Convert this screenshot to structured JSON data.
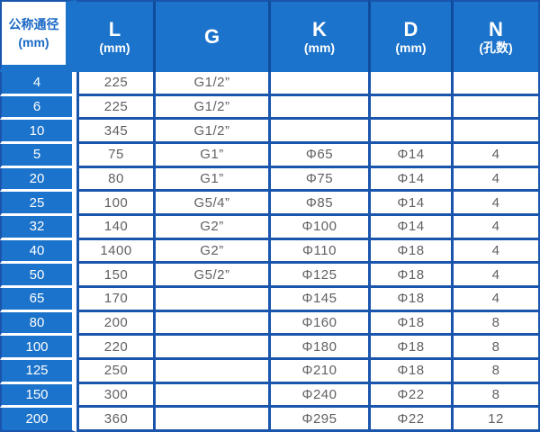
{
  "table": {
    "columns": [
      {
        "label": "公称通径",
        "sub": "(mm)"
      },
      {
        "label": "L",
        "sub": "(mm)"
      },
      {
        "label": "G",
        "sub": ""
      },
      {
        "label": "K",
        "sub": "(mm)"
      },
      {
        "label": "D",
        "sub": "(mm)"
      },
      {
        "label": "N",
        "sub": "(孔数)"
      }
    ],
    "rows": [
      [
        "4",
        "225",
        "G1/2”",
        "",
        "",
        ""
      ],
      [
        "6",
        "225",
        "G1/2”",
        "",
        "",
        ""
      ],
      [
        "10",
        "345",
        "G1/2”",
        "",
        "",
        ""
      ],
      [
        "5",
        "75",
        "G1”",
        "Φ65",
        "Φ14",
        "4"
      ],
      [
        "20",
        "80",
        "G1”",
        "Φ75",
        "Φ14",
        "4"
      ],
      [
        "25",
        "100",
        "G5/4”",
        "Φ85",
        "Φ14",
        "4"
      ],
      [
        "32",
        "140",
        "G2”",
        "Φ100",
        "Φ14",
        "4"
      ],
      [
        "40",
        "1400",
        "G2”",
        "Φ110",
        "Φ18",
        "4"
      ],
      [
        "50",
        "150",
        "G5/2”",
        "Φ125",
        "Φ18",
        "4"
      ],
      [
        "65",
        "170",
        "",
        "Φ145",
        "Φ18",
        "4"
      ],
      [
        "80",
        "200",
        "",
        "Φ160",
        "Φ18",
        "8"
      ],
      [
        "100",
        "220",
        "",
        "Φ180",
        "Φ18",
        "8"
      ],
      [
        "125",
        "250",
        "",
        "Φ210",
        "Φ18",
        "8"
      ],
      [
        "150",
        "300",
        "",
        "Φ240",
        "Φ22",
        "8"
      ],
      [
        "200",
        "360",
        "",
        "Φ295",
        "Φ22",
        "12"
      ]
    ]
  },
  "colors": {
    "header_fill_blue": "#1b73cb",
    "grid_border_blue": "#1a55ad",
    "header_separator_blue": "#0f4c9e",
    "data_text_gray": "#616161",
    "corner_text_blue": "#1968c5"
  }
}
